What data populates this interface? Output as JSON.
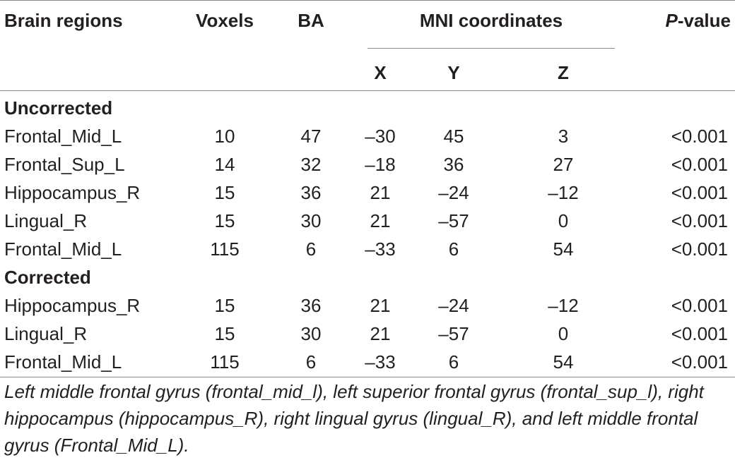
{
  "table": {
    "headers": {
      "brain_regions": "Brain regions",
      "voxels": "Voxels",
      "ba": "BA",
      "mni": "MNI coordinates",
      "p_italic": "P",
      "p_rest": "-value",
      "x": "X",
      "y": "Y",
      "z": "Z"
    },
    "sections": [
      {
        "title": "Uncorrected",
        "rows": [
          {
            "region": "Frontal_Mid_L",
            "voxels": "10",
            "ba": "47",
            "x": "–30",
            "y": "45",
            "z": "3",
            "p": "<0.001"
          },
          {
            "region": "Frontal_Sup_L",
            "voxels": "14",
            "ba": "32",
            "x": "–18",
            "y": "36",
            "z": "27",
            "p": "<0.001"
          },
          {
            "region": "Hippocampus_R",
            "voxels": "15",
            "ba": "36",
            "x": "21",
            "y": "–24",
            "z": "–12",
            "p": "<0.001"
          },
          {
            "region": "Lingual_R",
            "voxels": "15",
            "ba": "30",
            "x": "21",
            "y": "–57",
            "z": "0",
            "p": "<0.001"
          },
          {
            "region": "Frontal_Mid_L",
            "voxels": "115",
            "ba": "6",
            "x": "–33",
            "y": "6",
            "z": "54",
            "p": "<0.001"
          }
        ]
      },
      {
        "title": "Corrected",
        "rows": [
          {
            "region": "Hippocampus_R",
            "voxels": "15",
            "ba": "36",
            "x": "21",
            "y": "–24",
            "z": "–12",
            "p": "<0.001"
          },
          {
            "region": "Lingual_R",
            "voxels": "15",
            "ba": "30",
            "x": "21",
            "y": "–57",
            "z": "0",
            "p": "<0.001"
          },
          {
            "region": "Frontal_Mid_L",
            "voxels": "115",
            "ba": "6",
            "x": "–33",
            "y": "6",
            "z": "54",
            "p": "<0.001"
          }
        ]
      }
    ]
  },
  "footnote": "Left middle frontal gyrus (frontal_mid_l), left superior frontal gyrus (frontal_sup_l), right hippocampus (hippocampus_R), right lingual gyrus (lingual_R), and left middle frontal gyrus (Frontal_Mid_L)."
}
